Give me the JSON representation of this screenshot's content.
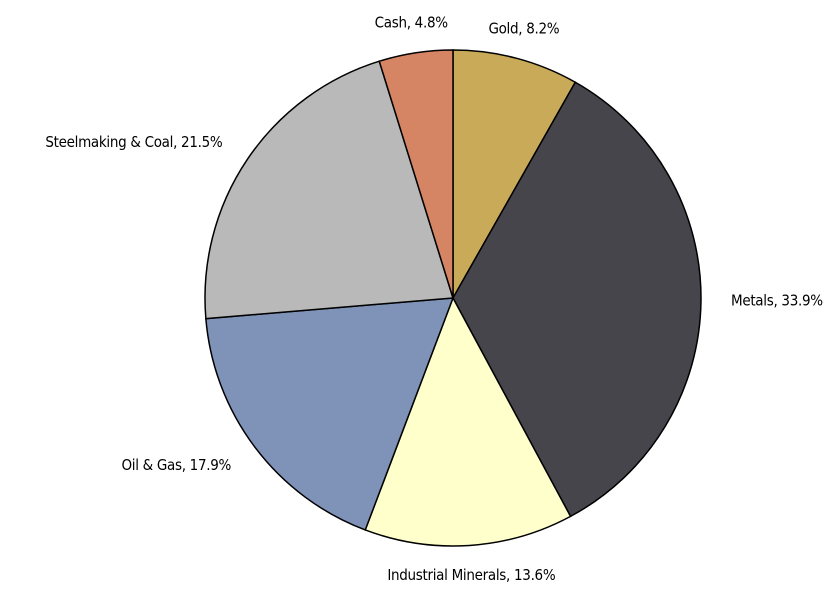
{
  "chart_data": {
    "type": "pie",
    "values": [
      8.2,
      33.9,
      13.6,
      17.9,
      21.5,
      4.8
    ],
    "value_labels": [
      "Gold, 8.2%",
      "Metals, 33.9%",
      "Industrial Minerals, 13.6%",
      "Oil & Gas, 17.9%",
      "Steelmaking & Coal, 21.5%",
      "Cash, 4.8%"
    ],
    "colors": [
      "#c8aa58",
      "#46454b",
      "#ffffcc",
      "#7f92b8",
      "#b9b9b9",
      "#d58464"
    ]
  }
}
